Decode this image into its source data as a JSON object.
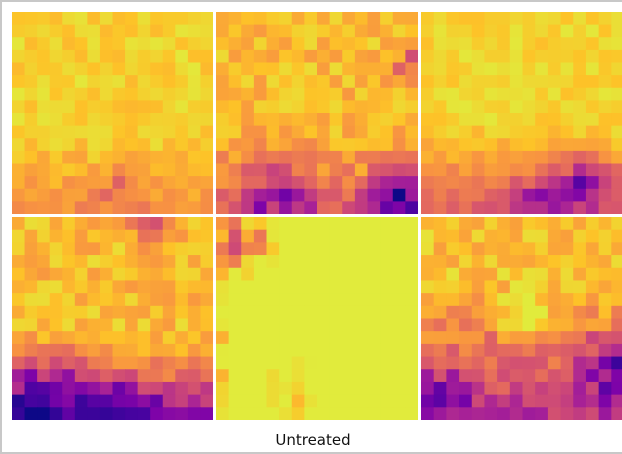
{
  "caption": "Untreated",
  "chart_data": {
    "type": "heatmap",
    "title": "",
    "colormap": "plasma",
    "value_range": [
      0,
      1
    ],
    "grid_rows": 2,
    "grid_cols": 3,
    "panels": [
      {
        "id": "top-left",
        "rows": 16,
        "cols": 16,
        "base": 0.92,
        "noise": 0.07,
        "seed": 11,
        "gradients": [
          {
            "axis": "y",
            "from": 0.6,
            "to": 1.0,
            "strength": 0.2
          }
        ],
        "hotspots": [
          {
            "cx": 0.55,
            "cy": 0.88,
            "r": 0.2,
            "strength": 0.15
          }
        ]
      },
      {
        "id": "top-center",
        "rows": 16,
        "cols": 16,
        "base": 0.86,
        "noise": 0.1,
        "seed": 23,
        "gradients": [
          {
            "axis": "y",
            "from": 0.55,
            "to": 1.0,
            "strength": 0.25
          }
        ],
        "hotspots": [
          {
            "cx": 0.9,
            "cy": 0.95,
            "r": 0.25,
            "strength": 0.65
          },
          {
            "cx": 0.3,
            "cy": 0.95,
            "r": 0.3,
            "strength": 0.35
          },
          {
            "cx": 0.95,
            "cy": 0.25,
            "r": 0.15,
            "strength": 0.3
          }
        ]
      },
      {
        "id": "top-right",
        "rows": 16,
        "cols": 16,
        "base": 0.93,
        "noise": 0.06,
        "seed": 37,
        "gradients": [
          {
            "axis": "y",
            "from": 0.55,
            "to": 1.0,
            "strength": 0.35
          }
        ],
        "hotspots": [
          {
            "cx": 0.8,
            "cy": 0.85,
            "r": 0.22,
            "strength": 0.4
          },
          {
            "cx": 0.55,
            "cy": 0.97,
            "r": 0.22,
            "strength": 0.35
          }
        ]
      },
      {
        "id": "bottom-left",
        "rows": 16,
        "cols": 16,
        "base": 0.86,
        "noise": 0.1,
        "seed": 41,
        "gradients": [
          {
            "axis": "y",
            "from": 0.62,
            "to": 1.0,
            "strength": 0.55
          }
        ],
        "hotspots": [
          {
            "cx": 0.12,
            "cy": 0.95,
            "r": 0.4,
            "strength": 0.45
          },
          {
            "cx": 0.55,
            "cy": 0.97,
            "r": 0.28,
            "strength": 0.35
          },
          {
            "cx": 0.7,
            "cy": 0.02,
            "r": 0.2,
            "strength": 0.3
          }
        ]
      },
      {
        "id": "bottom-center",
        "rows": 16,
        "cols": 16,
        "base": 0.86,
        "noise": 0.1,
        "seed": 53,
        "gradients": [
          {
            "axis": "x",
            "from": 0.0,
            "to": 0.15,
            "strength": -0.3
          }
        ],
        "hotspots": [
          {
            "cx": 0.15,
            "cy": 0.12,
            "r": 0.22,
            "strength": 0.55
          },
          {
            "cx": 0.4,
            "cy": 0.85,
            "r": 0.25,
            "strength": 0.25
          }
        ]
      },
      {
        "id": "bottom-right",
        "rows": 16,
        "cols": 16,
        "base": 0.88,
        "noise": 0.1,
        "seed": 67,
        "gradients": [
          {
            "axis": "y",
            "from": 0.3,
            "to": 1.0,
            "strength": 0.45
          }
        ],
        "hotspots": [
          {
            "cx": 0.95,
            "cy": 0.75,
            "r": 0.25,
            "strength": 0.45
          },
          {
            "cx": 0.1,
            "cy": 0.9,
            "r": 0.22,
            "strength": 0.35
          },
          {
            "cx": 0.5,
            "cy": 0.5,
            "r": 0.18,
            "strength": -0.3
          }
        ]
      }
    ]
  }
}
